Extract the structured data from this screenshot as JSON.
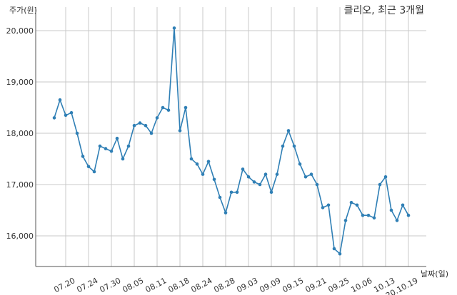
{
  "chart_data": {
    "type": "line",
    "title": "클리오, 최근 3개월",
    "ylabel": "주가(원)",
    "xlabel": "날짜(일)",
    "ylim": [
      15400,
      20400
    ],
    "yticks": [
      16000,
      17000,
      18000,
      19000,
      20000
    ],
    "ytick_labels": [
      "16,000",
      "17,000",
      "18,000",
      "19,000",
      "20,000"
    ],
    "xtick_labels": [
      "07.20",
      "07.24",
      "07.30",
      "08.05",
      "08.11",
      "08.18",
      "08.24",
      "08.28",
      "09.03",
      "09.09",
      "09.15",
      "09.21",
      "09.25",
      "10.06",
      "10.13",
      "20.10.19"
    ],
    "xtick_index": [
      2,
      6,
      10,
      14,
      18,
      22,
      26,
      30,
      34,
      38,
      42,
      46,
      50,
      54,
      58,
      62
    ],
    "grid": true,
    "series": [
      {
        "values": [
          18300,
          18650,
          18350,
          18400,
          18000,
          17550,
          17350,
          17250,
          17750,
          17700,
          17650,
          17900,
          17500,
          17750,
          18150,
          18200,
          18150,
          18000,
          18300,
          18500,
          18450,
          20050,
          18050,
          18500,
          17500,
          17400,
          17200,
          17450,
          17100,
          16750,
          16450,
          16850,
          16850,
          17300,
          17150,
          17050,
          17000,
          17200,
          16850,
          17200,
          17750,
          18050,
          17750,
          17400,
          17150,
          17200,
          17000,
          16550,
          16600,
          15750,
          15650,
          16300,
          16650,
          16600,
          16400,
          16400,
          16350,
          17000,
          17150,
          16500,
          16300,
          16600,
          16400
        ]
      }
    ]
  }
}
